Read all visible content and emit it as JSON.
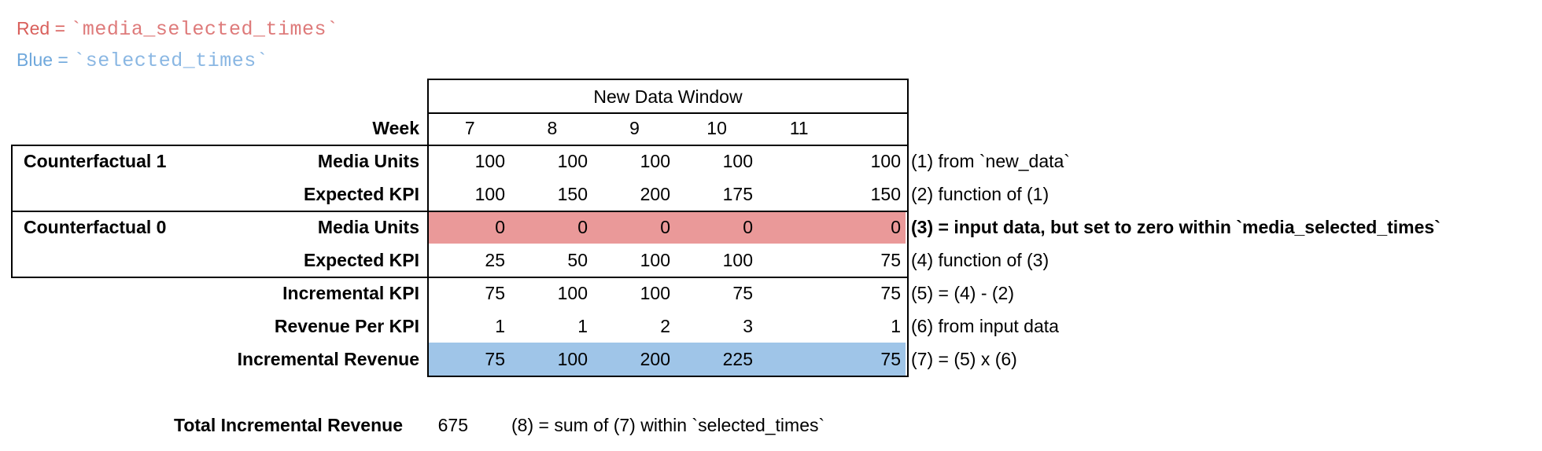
{
  "legend": {
    "red_label": "Red = ",
    "red_code": "`media_selected_times`",
    "blue_label": "Blue = ",
    "blue_code": "`selected_times`"
  },
  "table": {
    "header": "New Data Window",
    "week_label": "Week",
    "weeks": [
      "7",
      "8",
      "9",
      "10",
      "11"
    ],
    "rows": [
      {
        "group": "Counterfactual 1",
        "label": "Media Units",
        "values": [
          "100",
          "100",
          "100",
          "100",
          "100"
        ],
        "annotation": "(1) from `new_data`"
      },
      {
        "group": "",
        "label": "Expected KPI",
        "values": [
          "100",
          "150",
          "200",
          "175",
          "150"
        ],
        "annotation": "(2) function of (1)"
      },
      {
        "group": "Counterfactual 0",
        "label": "Media Units",
        "values": [
          "0",
          "0",
          "0",
          "0",
          "0"
        ],
        "annotation": "(3) = input data, but set to zero within `media_selected_times`",
        "fill": "red"
      },
      {
        "group": "",
        "label": "Expected KPI",
        "values": [
          "25",
          "50",
          "100",
          "100",
          "75"
        ],
        "annotation": "(4) function of (3)"
      },
      {
        "group": "",
        "label": "Incremental KPI",
        "values": [
          "75",
          "100",
          "100",
          "75",
          "75"
        ],
        "annotation": "(5) = (4) - (2)"
      },
      {
        "group": "",
        "label": "Revenue Per KPI",
        "values": [
          "1",
          "1",
          "2",
          "3",
          "1"
        ],
        "annotation": "(6) from input data"
      },
      {
        "group": "",
        "label": "Incremental Revenue",
        "values": [
          "75",
          "100",
          "200",
          "225",
          "75"
        ],
        "annotation": "(7) = (5) x (6)",
        "fill": "blue"
      }
    ]
  },
  "total": {
    "label": "Total Incremental Revenue",
    "value": "675",
    "annotation": "(8) = sum of (7) within `selected_times`"
  },
  "colors": {
    "red_fill": "#ea9999",
    "blue_fill": "#9fc5e8",
    "red_text": "#d9605c",
    "red_code_text": "#de7a7a",
    "blue_text": "#6fa8dc",
    "blue_code_text": "#8ab7e3"
  }
}
